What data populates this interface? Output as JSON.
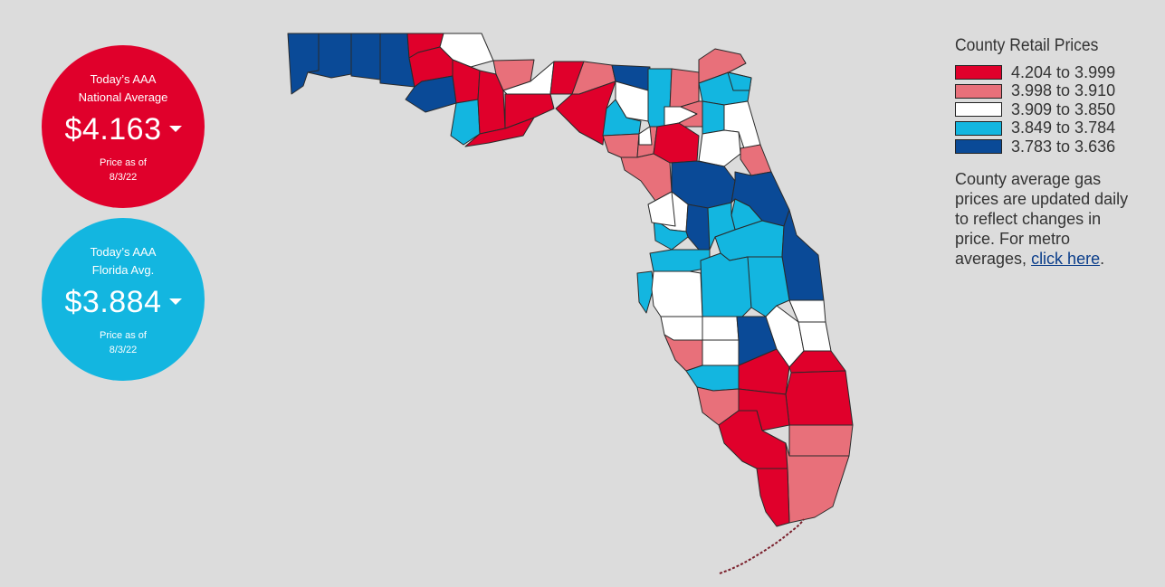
{
  "national": {
    "line1": "Today’s AAA",
    "line2": "National Average",
    "price": "$4.163",
    "asof1": "Price as of",
    "asof2": "8/3/22",
    "color": "#e0002b"
  },
  "florida": {
    "line1": "Today’s AAA",
    "line2": "Florida Avg.",
    "price": "$3.884",
    "asof1": "Price as of",
    "asof2": "8/3/22",
    "color": "#13b6e0"
  },
  "legend": {
    "title": "County Retail Prices",
    "ranges": [
      {
        "label": "4.204 to 3.999",
        "color": "#e0002b"
      },
      {
        "label": "3.998 to 3.910",
        "color": "#e8707a"
      },
      {
        "label": "3.909 to 3.850",
        "color": "#ffffff"
      },
      {
        "label": "3.849 to 3.784",
        "color": "#13b6e0"
      },
      {
        "label": "3.783 to 3.636",
        "color": "#0a4a97"
      }
    ],
    "desc_prefix": "County average gas prices are updated daily to reflect changes in price. For metro averages, ",
    "link_text": "click here",
    "desc_suffix": "."
  },
  "icons": {
    "price_trend": "caret-down-icon"
  }
}
